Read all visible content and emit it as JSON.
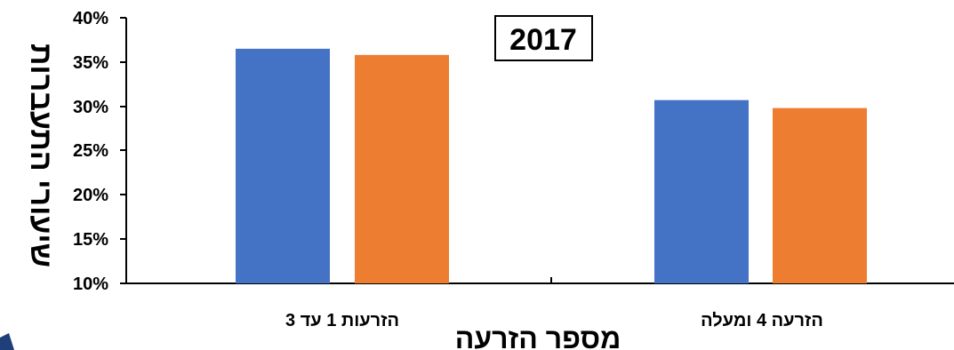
{
  "chart_data": {
    "type": "bar",
    "title": "2017",
    "xlabel": "מספר הזרעה",
    "ylabel": "שיעורי התעברות",
    "ylim": [
      0.1,
      0.4
    ],
    "yticks": [
      "10%",
      "15%",
      "20%",
      "25%",
      "30%",
      "35%",
      "40%"
    ],
    "categories": [
      "הזרעות 1 עד 3",
      "הזרעה 4 ומעלה"
    ],
    "series": [
      {
        "values": [
          0.365,
          0.307
        ],
        "color": "#4472C4"
      },
      {
        "values": [
          0.358,
          0.298
        ],
        "color": "#ED7D31"
      }
    ],
    "grid": false,
    "legend": "none"
  }
}
